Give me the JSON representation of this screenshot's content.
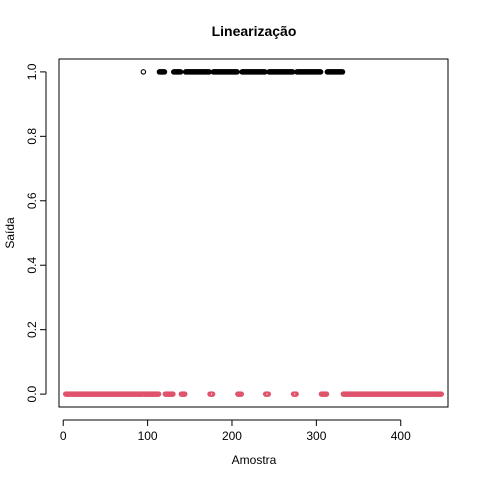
{
  "chart_data": {
    "type": "scatter",
    "title": "Linearização",
    "xlabel": "Amostra",
    "ylabel": "Saída",
    "xlim": [
      -5,
      456
    ],
    "ylim": [
      -0.04,
      1.04
    ],
    "x_ticks": [
      0,
      100,
      200,
      300,
      400
    ],
    "x_tick_labels": [
      "0",
      "100",
      "200",
      "300",
      "400"
    ],
    "y_ticks": [
      0.0,
      0.2,
      0.4,
      0.6,
      0.8,
      1.0
    ],
    "y_tick_labels": [
      "0.0",
      "0.2",
      "0.4",
      "0.6",
      "0.8",
      "1.0"
    ],
    "grid": false,
    "legend": "none",
    "colors": {
      "series_1": "#000000",
      "series_0": "#DF536B",
      "axis": "#000000",
      "background": "#FFFFFF"
    },
    "series": [
      {
        "y": 1.0,
        "color": "#000000",
        "marker": "open-circle",
        "x": [
          95,
          114,
          115,
          116,
          117,
          118,
          119,
          120,
          131,
          132,
          133,
          134,
          135,
          136,
          137,
          138,
          139,
          145,
          146,
          147,
          148,
          149,
          150,
          151,
          152,
          153,
          154,
          155,
          156,
          157,
          158,
          159,
          160,
          161,
          162,
          163,
          164,
          165,
          166,
          167,
          168,
          169,
          170,
          171,
          172,
          173,
          178,
          179,
          180,
          181,
          182,
          183,
          184,
          185,
          186,
          187,
          188,
          189,
          190,
          191,
          192,
          193,
          194,
          195,
          196,
          197,
          198,
          199,
          200,
          201,
          202,
          203,
          204,
          205,
          206,
          212,
          213,
          214,
          215,
          216,
          217,
          218,
          219,
          220,
          221,
          222,
          223,
          224,
          225,
          226,
          227,
          228,
          229,
          230,
          231,
          232,
          233,
          234,
          235,
          236,
          237,
          238,
          239,
          244,
          245,
          246,
          247,
          248,
          249,
          250,
          251,
          252,
          253,
          254,
          255,
          256,
          257,
          258,
          259,
          260,
          261,
          262,
          263,
          264,
          265,
          266,
          267,
          268,
          269,
          270,
          271,
          272,
          277,
          278,
          279,
          280,
          281,
          282,
          283,
          284,
          285,
          286,
          287,
          288,
          289,
          290,
          291,
          292,
          293,
          294,
          295,
          296,
          297,
          298,
          299,
          300,
          301,
          302,
          303,
          304,
          305,
          313,
          314,
          315,
          316,
          317,
          318,
          319,
          320,
          321,
          322,
          323,
          324,
          325,
          326,
          327,
          328,
          329,
          330,
          331
        ]
      },
      {
        "y": 0.0,
        "color": "#DF536B",
        "marker": "open-circle",
        "x": [
          3,
          4,
          5,
          6,
          7,
          8,
          9,
          10,
          11,
          12,
          13,
          14,
          15,
          16,
          17,
          18,
          19,
          20,
          21,
          22,
          23,
          24,
          25,
          26,
          27,
          28,
          29,
          30,
          31,
          32,
          33,
          34,
          35,
          36,
          37,
          38,
          39,
          40,
          41,
          42,
          43,
          44,
          45,
          46,
          47,
          48,
          49,
          50,
          51,
          52,
          53,
          54,
          55,
          56,
          57,
          58,
          59,
          60,
          61,
          62,
          63,
          64,
          65,
          66,
          67,
          68,
          69,
          70,
          71,
          72,
          73,
          74,
          75,
          76,
          77,
          78,
          79,
          80,
          81,
          82,
          83,
          84,
          85,
          86,
          87,
          88,
          89,
          90,
          91,
          92,
          93,
          94,
          96,
          97,
          98,
          99,
          100,
          101,
          102,
          103,
          104,
          105,
          106,
          107,
          108,
          109,
          110,
          111,
          112,
          113,
          121,
          122,
          123,
          124,
          125,
          126,
          127,
          128,
          129,
          130,
          140,
          141,
          142,
          143,
          144,
          174,
          175,
          176,
          177,
          207,
          208,
          209,
          210,
          211,
          240,
          241,
          242,
          243,
          273,
          274,
          275,
          276,
          306,
          307,
          308,
          309,
          310,
          311,
          312,
          332,
          333,
          334,
          335,
          336,
          337,
          338,
          339,
          340,
          341,
          342,
          343,
          344,
          345,
          346,
          347,
          348,
          349,
          350,
          351,
          352,
          353,
          354,
          355,
          356,
          357,
          358,
          359,
          360,
          361,
          362,
          363,
          364,
          365,
          366,
          367,
          368,
          369,
          370,
          371,
          372,
          373,
          374,
          375,
          376,
          377,
          378,
          379,
          380,
          381,
          382,
          383,
          384,
          385,
          386,
          387,
          388,
          389,
          390,
          391,
          392,
          393,
          394,
          395,
          396,
          397,
          398,
          399,
          400,
          401,
          402,
          403,
          404,
          405,
          406,
          407,
          408,
          409,
          410,
          411,
          412,
          413,
          414,
          415,
          416,
          417,
          418,
          419,
          420,
          421,
          422,
          423,
          424,
          425,
          426,
          427,
          428,
          429,
          430,
          431,
          432,
          433,
          434,
          435,
          436,
          437,
          438,
          439,
          440,
          441,
          442,
          443,
          444,
          445,
          446,
          447,
          448
        ]
      }
    ]
  }
}
